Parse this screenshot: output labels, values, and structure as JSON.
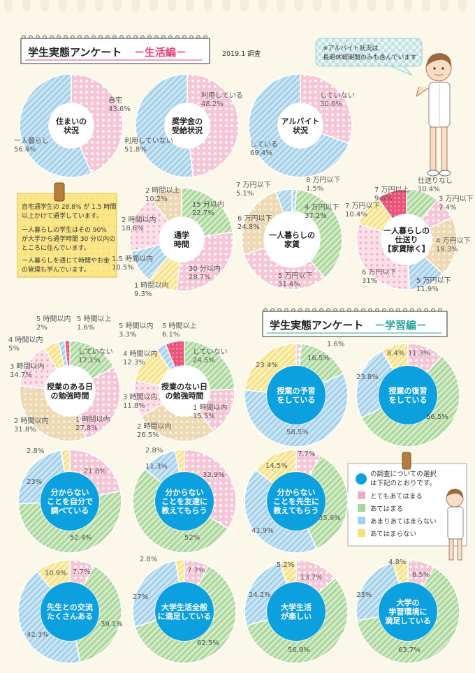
{
  "header_life": {
    "title": "学生実態アンケート",
    "sub": "－生活編－",
    "date": "2019.1 調査"
  },
  "header_study": {
    "title": "学生実態アンケート",
    "sub": "－学習編－"
  },
  "note_bubble": [
    "※アルバイト状況は",
    "長期休暇期間のみも含んでいます"
  ],
  "memo": [
    "自宅通学生の 28.8% が 1.5 時間",
    "以上かけて通学しています。",
    "一人暮らしの学生はその 90%",
    "が大学から通学時間 30 分以内の",
    "ところに住んでいます。",
    "一人暮らしを通じて時間やお金",
    "の管理も学んでいます。"
  ],
  "legend": {
    "title": [
      "の調査についての選択",
      "は下記のとおりです。"
    ],
    "items": [
      "とてもあてはまる",
      "あてはまる",
      "あまりあてはまらない",
      "あてはまらない"
    ]
  },
  "colors": {
    "pink": "#f2a9c4",
    "green": "#a9d69c",
    "blue": "#a3d0ea",
    "yellow": "#f6e07e",
    "beige": "#e8cc9c",
    "red": "#e8547a",
    "lightpink": "#f5c3d3",
    "accent": "#e8407a",
    "teal": "#2ba59b",
    "circle_blue": "#0da0de"
  },
  "chart_data": [
    {
      "type": "pie",
      "center": [
        "住まいの",
        "状況"
      ],
      "center_style": "white",
      "slices": [
        {
          "name": "自宅",
          "value": 43.6,
          "color": "pink"
        },
        {
          "name": "一人暮らし",
          "value": 56.4,
          "color": "blue"
        }
      ],
      "labels": [
        [
          "自宅",
          "43.6%"
        ],
        [
          "一人暮らし",
          "56.4%"
        ]
      ]
    },
    {
      "type": "pie",
      "center": [
        "奨学金の",
        "受給状況"
      ],
      "center_style": "white",
      "slices": [
        {
          "name": "利用している",
          "value": 48.2,
          "color": "pink"
        },
        {
          "name": "利用していない",
          "value": 51.8,
          "color": "blue"
        }
      ],
      "labels": [
        [
          "利用している",
          "48.2%"
        ],
        [
          "利用していない",
          "51.8%"
        ]
      ]
    },
    {
      "type": "pie",
      "center": [
        "アルバイト",
        "状況"
      ],
      "center_style": "white",
      "slices": [
        {
          "name": "していない",
          "value": 30.6,
          "color": "pink"
        },
        {
          "name": "している",
          "value": 69.4,
          "color": "blue"
        }
      ],
      "labels": [
        [
          "していない",
          "30.6%"
        ],
        [
          "している",
          "69.4%"
        ]
      ]
    },
    {
      "type": "pie",
      "center": [
        "通学",
        "時間"
      ],
      "center_style": "white",
      "slices": [
        {
          "name": "15 分以内",
          "value": 22.7,
          "color": "green"
        },
        {
          "name": "30 分以内",
          "value": 28.7,
          "color": "pink"
        },
        {
          "name": "1 時間以内",
          "value": 9.3,
          "color": "yellow"
        },
        {
          "name": "1.5 時間以内",
          "value": 10.5,
          "color": "blue"
        },
        {
          "name": "2 時間以内",
          "value": 18.6,
          "color": "lightpink"
        },
        {
          "name": "2 時間以上",
          "value": 10.2,
          "color": "beige"
        }
      ],
      "labels": [
        [
          "15 分以内",
          "22.7%"
        ],
        [
          "30 分以内",
          "28.7%"
        ],
        [
          "1 時間以内",
          "9.3%"
        ],
        [
          "1.5 時間以内",
          "10.5%"
        ],
        [
          "2 時間以内",
          "18.6%"
        ],
        [
          "2 時間以上",
          "10.2%"
        ]
      ]
    },
    {
      "type": "pie",
      "center": [
        "一人暮らしの",
        "家賃"
      ],
      "center_style": "white",
      "slices": [
        {
          "name": "8 万円以下",
          "value": 1.5,
          "color": "blue"
        },
        {
          "name": "4 万円以下",
          "value": 37.2,
          "color": "green"
        },
        {
          "name": "5 万円以下",
          "value": 31.4,
          "color": "pink"
        },
        {
          "name": "6 万円以下",
          "value": 24.8,
          "color": "beige"
        },
        {
          "name": "7 万円以下",
          "value": 5.1,
          "color": "blue"
        }
      ],
      "labels": [
        [
          "8 万円以下",
          "1.5%"
        ],
        [
          "4 万円以下",
          "37.2%"
        ],
        [
          "5 万円以下",
          "31.4%"
        ],
        [
          "6 万円以下",
          "24.8%"
        ],
        [
          "7 万円以下",
          "5.1%"
        ]
      ]
    },
    {
      "type": "pie",
      "center": [
        "一人暮らしの",
        "仕送り",
        "【家賃除く】"
      ],
      "center_style": "white",
      "slices": [
        {
          "name": "仕送りなし",
          "value": 10.4,
          "color": "green"
        },
        {
          "name": "3 万円以下",
          "value": 7.4,
          "color": "pink"
        },
        {
          "name": "4 万円以下",
          "value": 19.3,
          "color": "beige"
        },
        {
          "name": "5 万円以下",
          "value": 11.9,
          "color": "blue"
        },
        {
          "name": "6 万円以下",
          "value": 31,
          "color": "lightpink"
        },
        {
          "name": "7 万円以下",
          "value": 10.4,
          "color": "yellow"
        },
        {
          "name": "7 万円以上",
          "value": 9.6,
          "color": "red"
        }
      ],
      "labels": [
        [
          "仕送りなし",
          "10.4%"
        ],
        [
          "3 万円以下",
          "7.4%"
        ],
        [
          "4 万円以下",
          "19.3%"
        ],
        [
          "5 万円以下",
          "11.9%"
        ],
        [
          "6 万円以下",
          "31%"
        ],
        [
          "7 万円以下",
          "10.4%"
        ],
        [
          "7 万円以上",
          "9.6%"
        ]
      ]
    },
    {
      "type": "pie",
      "center": [
        "授業のある日",
        "の勉強時間"
      ],
      "center_style": "white",
      "slices": [
        {
          "name": "していない",
          "value": 17.1,
          "color": "green"
        },
        {
          "name": "1 時間以内",
          "value": 27.8,
          "color": "pink"
        },
        {
          "name": "2 時間以内",
          "value": 31.8,
          "color": "beige"
        },
        {
          "name": "3 時間以内",
          "value": 14.7,
          "color": "lightpink"
        },
        {
          "name": "4 時間以内",
          "value": 5,
          "color": "yellow"
        },
        {
          "name": "5 時間以内",
          "value": 2,
          "color": "blue"
        },
        {
          "name": "5 時間以上",
          "value": 1.6,
          "color": "red"
        }
      ],
      "labels": [
        [
          "していない",
          "17.1%"
        ],
        [
          "1 時間以内",
          "27.8%"
        ],
        [
          "2 時間以内",
          "31.8%"
        ],
        [
          "3 時間以内",
          "14.7%"
        ],
        [
          "4 時間以内",
          "5%"
        ],
        [
          "5 時間以内",
          "2%"
        ],
        [
          "5 時間以上",
          "1.6%"
        ]
      ]
    },
    {
      "type": "pie",
      "center": [
        "授業のない日",
        "の勉強時間"
      ],
      "center_style": "white",
      "slices": [
        {
          "name": "していない",
          "value": 24.5,
          "color": "green"
        },
        {
          "name": "1 時間以内",
          "value": 15.5,
          "color": "pink"
        },
        {
          "name": "2 時間以内",
          "value": 26.5,
          "color": "beige"
        },
        {
          "name": "3 時間以内",
          "value": 11.8,
          "color": "lightpink"
        },
        {
          "name": "4 時間以内",
          "value": 12.3,
          "color": "yellow"
        },
        {
          "name": "5 時間以内",
          "value": 3.3,
          "color": "blue"
        },
        {
          "name": "5 時間以上",
          "value": 6.1,
          "color": "red"
        }
      ],
      "labels": [
        [
          "していない",
          "24.5%"
        ],
        [
          "1 時間以内",
          "15.5%"
        ],
        [
          "2 時間以内",
          "26.5%"
        ],
        [
          "3 時間以内",
          "11.8%"
        ],
        [
          "4 時間以内",
          "12.3%"
        ],
        [
          "5 時間以内",
          "3.3%"
        ],
        [
          "5 時間以上",
          "6.1%"
        ]
      ]
    },
    {
      "type": "pie",
      "center": [
        "授業の予習",
        "をしている"
      ],
      "center_style": "blue",
      "slices": [
        {
          "value": 1.6,
          "color": "pink"
        },
        {
          "value": 16.5,
          "color": "green"
        },
        {
          "value": 58.5,
          "color": "blue"
        },
        {
          "value": 23.4,
          "color": "yellow"
        }
      ],
      "labels": [
        [
          "1.6%"
        ],
        [
          "16.5%"
        ],
        [
          "58.5%"
        ],
        [
          "23.4%"
        ]
      ]
    },
    {
      "type": "pie",
      "center": [
        "授業の復習",
        "をしている"
      ],
      "center_style": "blue",
      "slices": [
        {
          "value": 11.3,
          "color": "pink"
        },
        {
          "value": 56.5,
          "color": "green"
        },
        {
          "value": 23.8,
          "color": "blue"
        },
        {
          "value": 8.4,
          "color": "yellow"
        }
      ],
      "labels": [
        [
          "11.3%"
        ],
        [
          "56.5%"
        ],
        [
          "23.8%"
        ],
        [
          "8.4%"
        ]
      ]
    },
    {
      "type": "pie",
      "center": [
        "分からない",
        "ことを自分で",
        "調べている"
      ],
      "center_style": "blue",
      "slices": [
        {
          "value": 21.8,
          "color": "pink"
        },
        {
          "value": 52.4,
          "color": "green"
        },
        {
          "value": 23,
          "color": "blue"
        },
        {
          "value": 2.8,
          "color": "yellow"
        }
      ],
      "labels": [
        [
          "21.8%"
        ],
        [
          "52.4%"
        ],
        [
          "23%"
        ],
        [
          "2.8%"
        ]
      ]
    },
    {
      "type": "pie",
      "center": [
        "分からない",
        "ことを友達に",
        "教えてもらう"
      ],
      "center_style": "blue",
      "slices": [
        {
          "value": 33.9,
          "color": "pink"
        },
        {
          "value": 52,
          "color": "green"
        },
        {
          "value": 11.3,
          "color": "blue"
        },
        {
          "value": 2.8,
          "color": "yellow"
        }
      ],
      "labels": [
        [
          "33.9%"
        ],
        [
          "52%"
        ],
        [
          "11.3%"
        ],
        [
          "2.8%"
        ]
      ]
    },
    {
      "type": "pie",
      "center": [
        "分からない",
        "ことを先生に",
        "教えてもらう"
      ],
      "center_style": "blue",
      "slices": [
        {
          "value": 7.7,
          "color": "pink"
        },
        {
          "value": 35.9,
          "color": "green"
        },
        {
          "value": 41.9,
          "color": "blue"
        },
        {
          "value": 14.5,
          "color": "yellow"
        }
      ],
      "labels": [
        [
          "7.7%"
        ],
        [
          "35.9%"
        ],
        [
          "41.9%"
        ],
        [
          "14.5%"
        ]
      ]
    },
    {
      "type": "pie",
      "center": [
        "先生との交流",
        "たくさんある"
      ],
      "center_style": "blue",
      "slices": [
        {
          "value": 7.7,
          "color": "pink"
        },
        {
          "value": 39.1,
          "color": "green"
        },
        {
          "value": 42.3,
          "color": "blue"
        },
        {
          "value": 10.9,
          "color": "yellow"
        }
      ],
      "labels": [
        [
          "7.7%"
        ],
        [
          "39.1%"
        ],
        [
          "42.3%"
        ],
        [
          "10.9%"
        ]
      ]
    },
    {
      "type": "pie",
      "center": [
        "大学生活全般",
        "に満足している"
      ],
      "center_style": "blue",
      "slices": [
        {
          "value": 7.7,
          "color": "pink"
        },
        {
          "value": 62.5,
          "color": "green"
        },
        {
          "value": 27,
          "color": "blue"
        },
        {
          "value": 2.8,
          "color": "yellow"
        }
      ],
      "labels": [
        [
          "7.7%"
        ],
        [
          "62.5%"
        ],
        [
          "27%"
        ],
        [
          "2.8%"
        ]
      ]
    },
    {
      "type": "pie",
      "center": [
        "大学生活",
        "が楽しい"
      ],
      "center_style": "blue",
      "slices": [
        {
          "value": 13.7,
          "color": "pink"
        },
        {
          "value": 56.9,
          "color": "green"
        },
        {
          "value": 24.2,
          "color": "blue"
        },
        {
          "value": 5.2,
          "color": "yellow"
        }
      ],
      "labels": [
        [
          "13.7%"
        ],
        [
          "56.9%"
        ],
        [
          "24.2%"
        ],
        [
          "5.2%"
        ]
      ]
    },
    {
      "type": "pie",
      "center": [
        "大学の",
        "学習環境に",
        "満足している"
      ],
      "center_style": "blue",
      "slices": [
        {
          "value": 8.5,
          "color": "pink"
        },
        {
          "value": 63.7,
          "color": "green"
        },
        {
          "value": 23,
          "color": "blue"
        },
        {
          "value": 4.8,
          "color": "yellow"
        }
      ],
      "labels": [
        [
          "8.5%"
        ],
        [
          "63.7%"
        ],
        [
          "23%"
        ],
        [
          "4.8%"
        ]
      ]
    }
  ]
}
